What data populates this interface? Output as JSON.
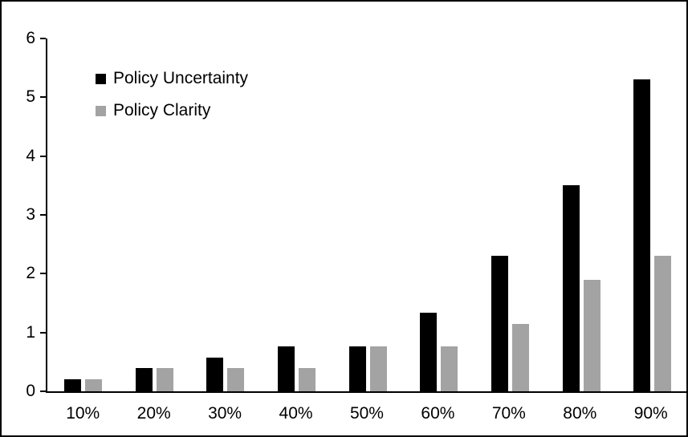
{
  "chart_data": {
    "type": "bar",
    "title": "",
    "xlabel": "",
    "ylabel": "",
    "categories": [
      "10%",
      "20%",
      "30%",
      "40%",
      "50%",
      "60%",
      "70%",
      "80%",
      "90%"
    ],
    "series": [
      {
        "name": "Policy Uncertainty",
        "color": "#000000",
        "values": [
          0.2,
          0.4,
          0.57,
          0.77,
          0.77,
          1.33,
          2.3,
          3.5,
          5.3
        ]
      },
      {
        "name": "Policy Clarity",
        "color": "#a3a3a3",
        "values": [
          0.2,
          0.4,
          0.4,
          0.4,
          0.77,
          0.77,
          1.15,
          1.9,
          2.3
        ]
      }
    ],
    "ylim": [
      0,
      6
    ],
    "yticks": [
      0,
      1,
      2,
      3,
      4,
      5,
      6
    ],
    "grid": false,
    "legend_position": "top-left",
    "axis_color": "#000000",
    "background_color": "#ffffff",
    "border_color": "#000000"
  }
}
